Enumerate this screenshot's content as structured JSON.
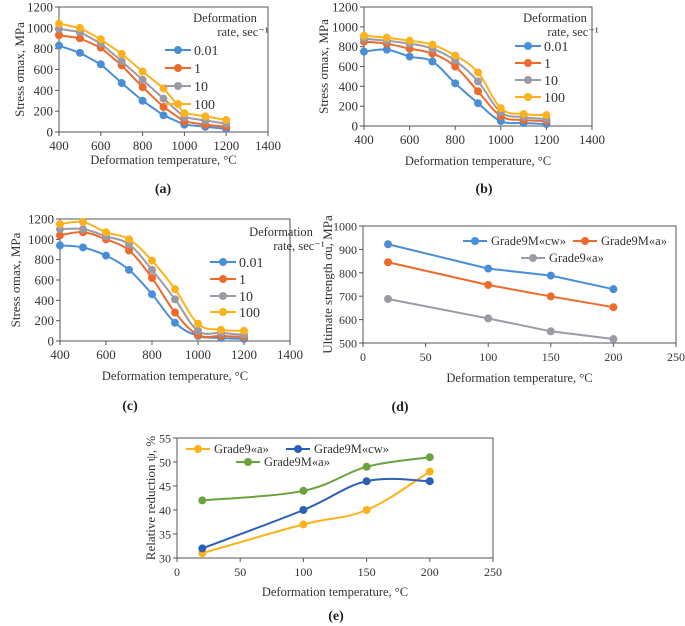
{
  "chart_data": [
    {
      "id": "a",
      "type": "line",
      "panel_label": "(a)",
      "title": "",
      "xlabel": "Deformation temperature, °C",
      "ylabel": "Stress σmax, MPa",
      "xlim": [
        400,
        1400
      ],
      "ylim": [
        0,
        1200
      ],
      "xticks": [
        400,
        600,
        800,
        1000,
        1200,
        1400
      ],
      "yticks": [
        0,
        200,
        400,
        600,
        800,
        1000,
        1200
      ],
      "legend_title": [
        "Deformation",
        "rate, sec⁻¹"
      ],
      "legend_position": "top-right",
      "x": [
        400,
        500,
        600,
        700,
        800,
        900,
        1000,
        1100,
        1200
      ],
      "series": [
        {
          "name": "0.01",
          "color": "#4a8fd6",
          "values": [
            830,
            760,
            650,
            470,
            300,
            160,
            70,
            50,
            30
          ]
        },
        {
          "name": "1",
          "color": "#ed6a2b",
          "values": [
            930,
            900,
            810,
            640,
            430,
            240,
            100,
            70,
            50
          ]
        },
        {
          "name": "10",
          "color": "#9b9aa6",
          "values": [
            990,
            960,
            850,
            680,
            500,
            320,
            140,
            110,
            80
          ]
        },
        {
          "name": "100",
          "color": "#fbb21c",
          "values": [
            1040,
            1000,
            890,
            750,
            580,
            420,
            180,
            150,
            115
          ]
        }
      ]
    },
    {
      "id": "b",
      "type": "line",
      "panel_label": "(b)",
      "title": "",
      "xlabel": "Deformation temperature, °C",
      "ylabel": "Stress σmax, MPa",
      "xlim": [
        400,
        1400
      ],
      "ylim": [
        0,
        1200
      ],
      "xticks": [
        400,
        600,
        800,
        1000,
        1200,
        1400
      ],
      "yticks": [
        0,
        200,
        400,
        600,
        800,
        1000,
        1200
      ],
      "legend_title": [
        "Deformation",
        "rate, sec⁻¹"
      ],
      "legend_position": "top-right",
      "x": [
        400,
        500,
        600,
        700,
        800,
        900,
        1000,
        1100,
        1200
      ],
      "series": [
        {
          "name": "0.01",
          "color": "#4a8fd6",
          "values": [
            750,
            770,
            700,
            650,
            430,
            230,
            50,
            30,
            20
          ]
        },
        {
          "name": "1",
          "color": "#ed6a2b",
          "values": [
            850,
            830,
            780,
            730,
            600,
            350,
            100,
            60,
            50
          ]
        },
        {
          "name": "10",
          "color": "#9b9aa6",
          "values": [
            880,
            860,
            830,
            780,
            660,
            450,
            140,
            90,
            70
          ]
        },
        {
          "name": "100",
          "color": "#fbb21c",
          "values": [
            910,
            890,
            860,
            820,
            710,
            540,
            180,
            120,
            110
          ]
        }
      ]
    },
    {
      "id": "c",
      "type": "line",
      "panel_label": "(c)",
      "title": "",
      "xlabel": "Deformation temperature, °C",
      "ylabel": "Stress σmax, MPa",
      "xlim": [
        400,
        1400
      ],
      "ylim": [
        0,
        1200
      ],
      "xticks": [
        400,
        600,
        800,
        1000,
        1200,
        1400
      ],
      "yticks": [
        0,
        200,
        400,
        600,
        800,
        1000,
        1200
      ],
      "legend_title": [
        "Deformation",
        "rate, sec⁻¹"
      ],
      "legend_position": "top-right",
      "x": [
        400,
        500,
        600,
        700,
        800,
        900,
        1000,
        1100,
        1200
      ],
      "series": [
        {
          "name": "0.01",
          "color": "#4a8fd6",
          "values": [
            940,
            920,
            840,
            700,
            460,
            180,
            50,
            30,
            20
          ]
        },
        {
          "name": "1",
          "color": "#ed6a2b",
          "values": [
            1040,
            1070,
            1000,
            890,
            620,
            280,
            60,
            50,
            40
          ]
        },
        {
          "name": "10",
          "color": "#9b9aa6",
          "values": [
            1100,
            1100,
            1030,
            950,
            700,
            410,
            100,
            80,
            60
          ]
        },
        {
          "name": "100",
          "color": "#fbb21c",
          "values": [
            1150,
            1170,
            1070,
            1000,
            790,
            510,
            170,
            110,
            100
          ]
        }
      ]
    },
    {
      "id": "d",
      "type": "line",
      "panel_label": "(d)",
      "title": "",
      "xlabel": "Deformation temperature, °C",
      "ylabel": "Ultimate strength σu, MPa",
      "xlim": [
        0,
        250
      ],
      "ylim": [
        500,
        1000
      ],
      "xticks": [
        0,
        50,
        100,
        150,
        200,
        250
      ],
      "yticks": [
        500,
        600,
        700,
        800,
        900,
        1000
      ],
      "legend_position": "top-right",
      "x": [
        20,
        100,
        150,
        200
      ],
      "series": [
        {
          "name": "Grade9M«cw»",
          "color": "#4a8fd6",
          "values": [
            922,
            818,
            788,
            730
          ]
        },
        {
          "name": "Grade9M«a»",
          "color": "#ed6a2b",
          "values": [
            845,
            748,
            699,
            653
          ]
        },
        {
          "name": "Grade9«a»",
          "color": "#9b9aa6",
          "values": [
            688,
            605,
            550,
            517
          ]
        }
      ]
    },
    {
      "id": "e",
      "type": "line",
      "panel_label": "(e)",
      "title": "",
      "xlabel": "Deformation temperature, °C",
      "ylabel": "Relative reduction ψ, %",
      "xlim": [
        0,
        250
      ],
      "ylim": [
        30,
        55
      ],
      "xticks": [
        0,
        50,
        100,
        150,
        200,
        250
      ],
      "yticks": [
        30,
        35,
        40,
        45,
        50,
        55
      ],
      "legend_position": "top-left",
      "x": [
        20,
        100,
        150,
        200
      ],
      "series": [
        {
          "name": "Grade9«a»",
          "color": "#fbb21c",
          "values": [
            31,
            37,
            40,
            48
          ]
        },
        {
          "name": "Grade9M«cw»",
          "color": "#2d5fb3",
          "values": [
            32,
            40,
            46,
            46
          ]
        },
        {
          "name": "Grade9M«a»",
          "color": "#6aa33e",
          "values": [
            42,
            44,
            49,
            51
          ]
        }
      ]
    }
  ]
}
